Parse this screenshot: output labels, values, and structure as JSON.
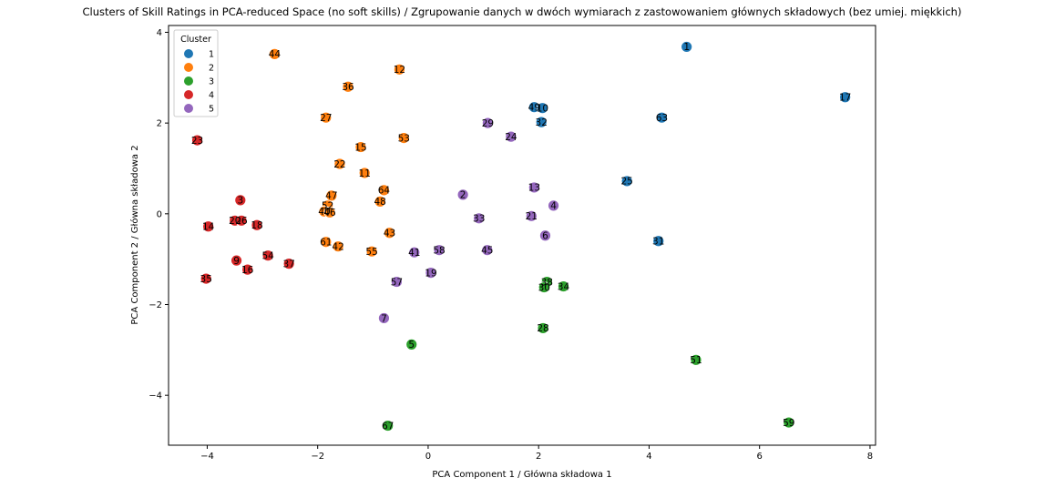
{
  "chart_data": {
    "type": "scatter",
    "title": "Clusters of Skill Ratings in PCA-reduced Space (no soft skills) / Zgrupowanie danych w dwóch wymiarach z zastowowaniem głównych składowych (bez umiej. miękkich)",
    "xlabel": "PCA Component 1 / Główna składowa 1",
    "ylabel": "PCA Component 2 / Główna składowa 2",
    "xlim": [
      -4.7,
      8.1
    ],
    "ylim": [
      -5.1,
      4.15
    ],
    "xticks": [
      -4,
      -2,
      0,
      2,
      4,
      6,
      8
    ],
    "yticks": [
      -4,
      -2,
      0,
      2,
      4
    ],
    "legend": {
      "title": "Cluster",
      "position": "top-left"
    },
    "series": [
      {
        "name": "1",
        "color": "#1f77b4",
        "points": [
          {
            "label": "1",
            "x": 4.68,
            "y": 3.68
          },
          {
            "label": "17",
            "x": 7.55,
            "y": 2.57
          },
          {
            "label": "49",
            "x": 1.92,
            "y": 2.35
          },
          {
            "label": "10",
            "x": 2.07,
            "y": 2.33
          },
          {
            "label": "32",
            "x": 2.05,
            "y": 2.02
          },
          {
            "label": "63",
            "x": 4.23,
            "y": 2.12
          },
          {
            "label": "25",
            "x": 3.6,
            "y": 0.72
          },
          {
            "label": "31",
            "x": 4.17,
            "y": -0.6
          }
        ]
      },
      {
        "name": "2",
        "color": "#ff7f0e",
        "points": [
          {
            "label": "44",
            "x": -2.78,
            "y": 3.52
          },
          {
            "label": "12",
            "x": -0.52,
            "y": 3.18
          },
          {
            "label": "36",
            "x": -1.45,
            "y": 2.8
          },
          {
            "label": "27",
            "x": -1.85,
            "y": 2.12
          },
          {
            "label": "53",
            "x": -0.44,
            "y": 1.67
          },
          {
            "label": "15",
            "x": -1.22,
            "y": 1.47
          },
          {
            "label": "22",
            "x": -1.6,
            "y": 1.1
          },
          {
            "label": "11",
            "x": -1.15,
            "y": 0.9
          },
          {
            "label": "64",
            "x": -0.8,
            "y": 0.52
          },
          {
            "label": "47",
            "x": -1.75,
            "y": 0.4
          },
          {
            "label": "48",
            "x": -0.87,
            "y": 0.27
          },
          {
            "label": "52",
            "x": -1.82,
            "y": 0.18
          },
          {
            "label": "40",
            "x": -1.88,
            "y": 0.05
          },
          {
            "label": "46",
            "x": -1.78,
            "y": 0.03
          },
          {
            "label": "43",
            "x": -0.7,
            "y": -0.42
          },
          {
            "label": "61",
            "x": -1.85,
            "y": -0.62
          },
          {
            "label": "42",
            "x": -1.63,
            "y": -0.72
          },
          {
            "label": "55",
            "x": -1.02,
            "y": -0.83
          }
        ]
      },
      {
        "name": "3",
        "color": "#2ca02c",
        "points": [
          {
            "label": "38",
            "x": 2.15,
            "y": -1.5
          },
          {
            "label": "30",
            "x": 2.1,
            "y": -1.62
          },
          {
            "label": "34",
            "x": 2.45,
            "y": -1.6
          },
          {
            "label": "28",
            "x": 2.08,
            "y": -2.52
          },
          {
            "label": "5",
            "x": -0.3,
            "y": -2.88
          },
          {
            "label": "51",
            "x": 4.85,
            "y": -3.22
          },
          {
            "label": "59",
            "x": 6.53,
            "y": -4.6
          },
          {
            "label": "67",
            "x": -0.73,
            "y": -4.67
          }
        ]
      },
      {
        "name": "4",
        "color": "#d62728",
        "points": [
          {
            "label": "23",
            "x": -4.18,
            "y": 1.62
          },
          {
            "label": "3",
            "x": -3.4,
            "y": 0.3
          },
          {
            "label": "20",
            "x": -3.5,
            "y": -0.15
          },
          {
            "label": "26",
            "x": -3.38,
            "y": -0.15
          },
          {
            "label": "14",
            "x": -3.98,
            "y": -0.28
          },
          {
            "label": "18",
            "x": -3.1,
            "y": -0.25
          },
          {
            "label": "54",
            "x": -2.9,
            "y": -0.92
          },
          {
            "label": "37",
            "x": -2.52,
            "y": -1.1
          },
          {
            "label": "9",
            "x": -3.47,
            "y": -1.03
          },
          {
            "label": "16",
            "x": -3.27,
            "y": -1.23
          },
          {
            "label": "35",
            "x": -4.02,
            "y": -1.43
          }
        ]
      },
      {
        "name": "5",
        "color": "#9467bd",
        "points": [
          {
            "label": "29",
            "x": 1.08,
            "y": 2.0
          },
          {
            "label": "24",
            "x": 1.5,
            "y": 1.7
          },
          {
            "label": "13",
            "x": 1.92,
            "y": 0.58
          },
          {
            "label": "2",
            "x": 0.63,
            "y": 0.42
          },
          {
            "label": "4",
            "x": 2.27,
            "y": 0.18
          },
          {
            "label": "33",
            "x": 0.92,
            "y": -0.1
          },
          {
            "label": "21",
            "x": 1.87,
            "y": -0.05
          },
          {
            "label": "6",
            "x": 2.12,
            "y": -0.48
          },
          {
            "label": "41",
            "x": -0.25,
            "y": -0.85
          },
          {
            "label": "58",
            "x": 0.2,
            "y": -0.8
          },
          {
            "label": "45",
            "x": 1.07,
            "y": -0.8
          },
          {
            "label": "57",
            "x": -0.57,
            "y": -1.5
          },
          {
            "label": "19",
            "x": 0.05,
            "y": -1.3
          },
          {
            "label": "7",
            "x": -0.8,
            "y": -2.3
          }
        ]
      }
    ]
  }
}
